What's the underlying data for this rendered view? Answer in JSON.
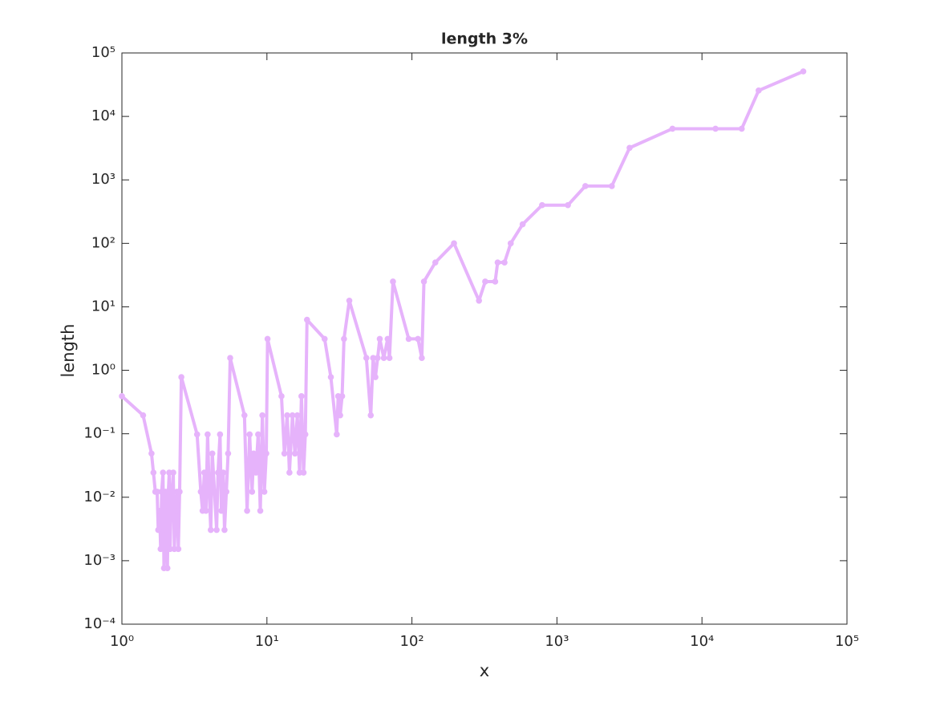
{
  "chart_data": {
    "type": "line",
    "title": "length 3%",
    "xlabel": "x",
    "ylabel": "length",
    "xscale": "log",
    "yscale": "log",
    "color": "#e6b3fb",
    "xlim": [
      1,
      100000
    ],
    "ylim": [
      0.0001,
      100000
    ],
    "xticks": [
      {
        "value": 1,
        "label": "10⁰"
      },
      {
        "value": 10,
        "label": "10¹"
      },
      {
        "value": 100,
        "label": "10²"
      },
      {
        "value": 1000,
        "label": "10³"
      },
      {
        "value": 10000,
        "label": "10⁴"
      },
      {
        "value": 100000,
        "label": "10⁵"
      }
    ],
    "yticks": [
      {
        "value": 0.0001,
        "label": "10⁻⁴"
      },
      {
        "value": 0.001,
        "label": "10⁻³"
      },
      {
        "value": 0.01,
        "label": "10⁻²"
      },
      {
        "value": 0.1,
        "label": "10⁻¹"
      },
      {
        "value": 1,
        "label": "10⁰"
      },
      {
        "value": 10,
        "label": "10¹"
      },
      {
        "value": 100,
        "label": "10²"
      },
      {
        "value": 1000,
        "label": "10³"
      },
      {
        "value": 10000,
        "label": "10⁴"
      },
      {
        "value": 100000,
        "label": "10⁵"
      }
    ],
    "x": [
      1,
      1.4,
      1.6,
      1.65,
      1.7,
      1.75,
      1.78,
      1.82,
      1.85,
      1.88,
      1.92,
      1.95,
      1.98,
      2.0,
      2.03,
      2.06,
      2.09,
      2.12,
      2.15,
      2.18,
      2.22,
      2.26,
      2.3,
      2.35,
      2.4,
      2.45,
      2.5,
      2.57,
      3.3,
      3.5,
      3.6,
      3.7,
      3.8,
      3.9,
      4.0,
      4.1,
      4.2,
      4.35,
      4.5,
      4.6,
      4.75,
      4.85,
      5.0,
      5.1,
      5.25,
      5.4,
      5.58,
      7.0,
      7.3,
      7.6,
      7.9,
      8.1,
      8.4,
      8.7,
      9.0,
      9.3,
      9.6,
      9.9,
      10.1,
      12.6,
      13.2,
      13.8,
      14.3,
      15,
      15.6,
      16.2,
      16.8,
      17.3,
      17.9,
      18.4,
      18.9,
      25,
      27.6,
      30.3,
      31,
      32,
      33,
      34,
      37,
      48.5,
      52,
      54,
      56,
      58,
      60,
      64,
      68,
      70,
      74,
      95,
      110,
      117,
      121,
      145,
      195,
      290,
      320,
      375,
      390,
      435,
      480,
      580,
      790,
      1190,
      1570,
      2390,
      3170,
      6260,
      12400,
      18800,
      24600,
      50000
    ],
    "values": [
      0.390625,
      0.1953125,
      0.048828,
      0.024414,
      0.012207,
      0.012207,
      0.0030518,
      0.0061035,
      0.0015259,
      0.012207,
      0.024414,
      0.00076294,
      0.0061035,
      0.012207,
      0.0030518,
      0.00076294,
      0.012207,
      0.024414,
      0.0015259,
      0.0061035,
      0.012207,
      0.024414,
      0.0015259,
      0.0061035,
      0.012207,
      0.0015259,
      0.012207,
      0.78125,
      0.097656,
      0.012207,
      0.0061035,
      0.024414,
      0.0061035,
      0.097656,
      0.012207,
      0.0030518,
      0.048828,
      0.012207,
      0.0030518,
      0.024414,
      0.097656,
      0.0061035,
      0.024414,
      0.0030518,
      0.012207,
      0.048828,
      1.5625,
      0.1953125,
      0.0061035,
      0.097656,
      0.012207,
      0.048828,
      0.024414,
      0.097656,
      0.0061035,
      0.1953125,
      0.012207,
      0.048828,
      3.125,
      0.390625,
      0.048828,
      0.1953125,
      0.024414,
      0.1953125,
      0.048828,
      0.1953125,
      0.024414,
      0.390625,
      0.024414,
      0.097656,
      6.25,
      3.125,
      0.78125,
      0.097656,
      0.390625,
      0.1953125,
      0.390625,
      3.125,
      12.5,
      1.5625,
      0.1953125,
      1.5625,
      0.78125,
      1.5625,
      3.125,
      1.5625,
      3.125,
      1.5625,
      25,
      3.125,
      3.125,
      1.5625,
      25,
      50,
      100,
      12.5,
      25,
      25,
      50,
      50,
      100,
      200,
      400,
      400,
      800,
      800,
      3200,
      6400,
      6400,
      6400,
      25600,
      51200
    ]
  }
}
